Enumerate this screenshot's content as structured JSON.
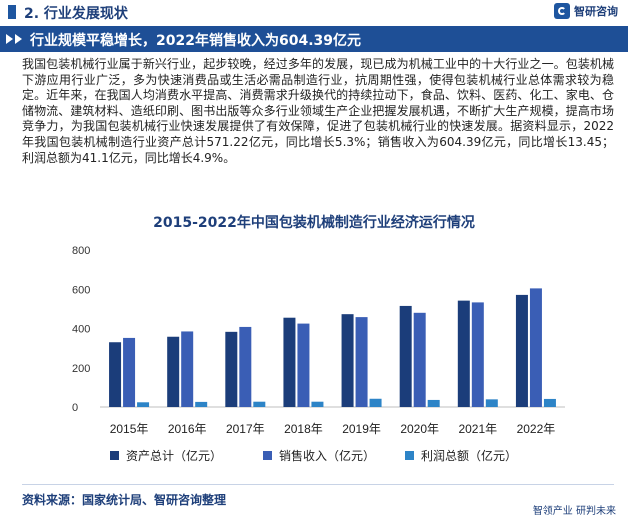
{
  "header": {
    "section_label": "2. 行业发展现状",
    "brand": "智研咨询"
  },
  "banner": {
    "title": "行业规模平稳增长，2022年销售收入为604.39亿元"
  },
  "body_text": "我国包装机械行业属于新兴行业，起步较晚，经过多年的发展，现已成为机械工业中的十大行业之一。包装机械下游应用行业广泛，多为快速消费品或生活必需品制造行业，抗周期性强，使得包装机械行业总体需求较为稳定。近年来，在我国人均消费水平提高、消费需求升级换代的持续拉动下，食品、饮料、医药、化工、家电、仓储物流、建筑材料、造纸印刷、图书出版等众多行业领域生产企业把握发展机遇，不断扩大生产规模，提高市场竞争力，为我国包装机械行业快速发展提供了有效保障，促进了包装机械行业的快速发展。据资料显示，2022年我国包装机械制造行业资产总计571.22亿元，同比增长5.3%；销售收入为604.39亿元，同比增长13.45；利润总额为41.1亿元，同比增长4.9%。",
  "chart_data": {
    "type": "bar",
    "title": "2015-2022年中国包装机械制造行业经济运行情况",
    "categories": [
      "2015年",
      "2016年",
      "2017年",
      "2018年",
      "2019年",
      "2020年",
      "2021年",
      "2022年"
    ],
    "series": [
      {
        "name": "资产总计（亿元）",
        "color": "#1b3d7a",
        "values": [
          330,
          358,
          383,
          455,
          473,
          515,
          542,
          571.22
        ]
      },
      {
        "name": "销售收入（亿元）",
        "color": "#3a5eb5",
        "values": [
          352,
          385,
          408,
          425,
          458,
          480,
          533,
          604.39
        ]
      },
      {
        "name": "利润总额（亿元）",
        "color": "#2d84c7",
        "values": [
          24,
          26,
          27,
          27,
          42,
          36,
          39,
          41.1
        ]
      }
    ],
    "y_ticks": [
      0,
      200,
      400,
      600,
      800
    ],
    "ylim": [
      0,
      800
    ],
    "grid": false,
    "legend_position": "bottom"
  },
  "footer": {
    "source": "资料来源：国家统计局、智研咨询整理",
    "slogan": "智领产业 研判未来"
  }
}
